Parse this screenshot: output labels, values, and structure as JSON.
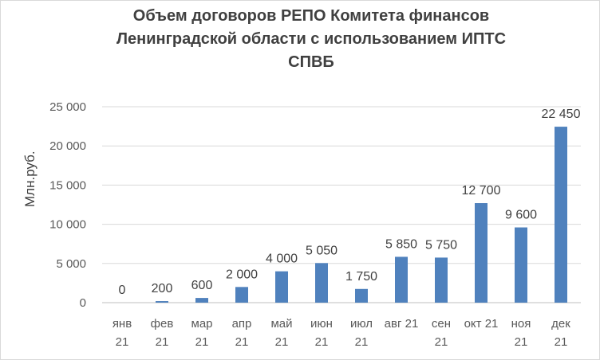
{
  "chart_data": {
    "type": "bar",
    "title_lines": [
      "Объем  договоров РЕПО Комитета финансов",
      "Ленинградской области с использованием ИПТС",
      "СПВБ"
    ],
    "xlabel": "",
    "ylabel": "Млн.руб.",
    "categories": [
      [
        "янв",
        "21"
      ],
      [
        "фев",
        "21"
      ],
      [
        "мар",
        "21"
      ],
      [
        "апр",
        "21"
      ],
      [
        "май",
        "21"
      ],
      [
        "июн",
        "21"
      ],
      [
        "июл",
        "21"
      ],
      [
        "авг 21",
        ""
      ],
      [
        "сен",
        "21"
      ],
      [
        "окт 21",
        ""
      ],
      [
        "ноя",
        "21"
      ],
      [
        "дек",
        "21"
      ]
    ],
    "values": [
      0,
      200,
      600,
      2000,
      4000,
      5050,
      1750,
      5850,
      5750,
      12700,
      9600,
      22450
    ],
    "value_labels": [
      "0",
      "200",
      "600",
      "2 000",
      "4 000",
      "5 050",
      "1 750",
      "5 850",
      "5 750",
      "12 700",
      "9 600",
      "22 450"
    ],
    "ylim": [
      0,
      25000
    ],
    "yticks": [
      0,
      5000,
      10000,
      15000,
      20000,
      25000
    ],
    "ytick_labels": [
      "0",
      "5 000",
      "10 000",
      "15 000",
      "20 000",
      "25 000"
    ],
    "grid": true,
    "bar_color": "#4f81bd",
    "grid_color": "#d9d9d9"
  }
}
